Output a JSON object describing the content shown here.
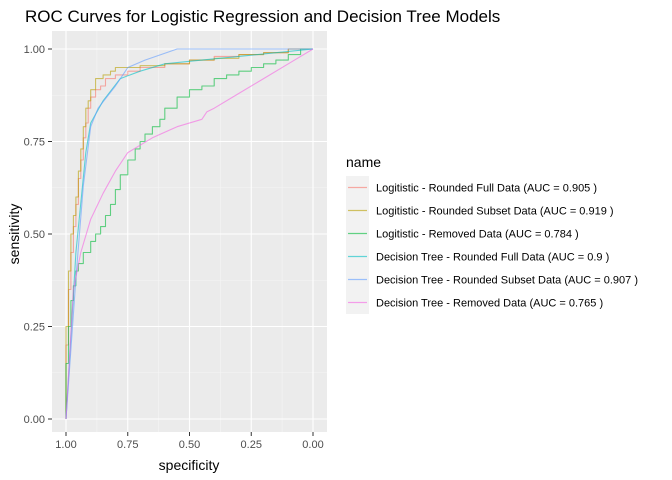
{
  "chart_data": {
    "type": "line",
    "title": "ROC Curves for Logistic Regression and Decision Tree Models",
    "xlabel": "specificity",
    "ylabel": "sensitivity",
    "xlim": [
      1.0,
      0.0
    ],
    "ylim": [
      0.0,
      1.0
    ],
    "x_reversed": true,
    "x_ticks": [
      1.0,
      0.75,
      0.5,
      0.25,
      0.0
    ],
    "x_tick_labels": [
      "1.00",
      "0.75",
      "0.50",
      "0.25",
      "0.00"
    ],
    "y_ticks": [
      0.0,
      0.25,
      0.5,
      0.75,
      1.0
    ],
    "y_tick_labels": [
      "0.00",
      "0.25",
      "0.50",
      "0.75",
      "1.00"
    ],
    "grid": true,
    "legend_title": "name",
    "legend_position": "right",
    "series": [
      {
        "name": "Logitistic - Rounded Full Data (AUC = 0.905 )",
        "color": "#F8766D",
        "step": true,
        "x": [
          1.0,
          0.99,
          0.98,
          0.97,
          0.96,
          0.95,
          0.94,
          0.93,
          0.92,
          0.91,
          0.9,
          0.88,
          0.86,
          0.84,
          0.8,
          0.75,
          0.7,
          0.6,
          0.5,
          0.4,
          0.3,
          0.2,
          0.1,
          0.0
        ],
        "y": [
          0.0,
          0.2,
          0.35,
          0.45,
          0.52,
          0.58,
          0.65,
          0.7,
          0.76,
          0.8,
          0.84,
          0.87,
          0.89,
          0.9,
          0.92,
          0.93,
          0.94,
          0.95,
          0.96,
          0.97,
          0.98,
          0.985,
          0.99,
          1.0
        ]
      },
      {
        "name": "Logitistic - Rounded Subset Data (AUC = 0.919 )",
        "color": "#B79F00",
        "step": true,
        "x": [
          1.0,
          0.99,
          0.98,
          0.97,
          0.96,
          0.95,
          0.94,
          0.93,
          0.92,
          0.91,
          0.9,
          0.88,
          0.85,
          0.82,
          0.8,
          0.75,
          0.7,
          0.6,
          0.5,
          0.4,
          0.3,
          0.2,
          0.1,
          0.0
        ],
        "y": [
          0.0,
          0.25,
          0.4,
          0.5,
          0.55,
          0.6,
          0.67,
          0.73,
          0.79,
          0.84,
          0.86,
          0.89,
          0.92,
          0.93,
          0.94,
          0.95,
          0.95,
          0.955,
          0.96,
          0.97,
          0.975,
          0.985,
          0.99,
          1.0
        ]
      },
      {
        "name": "Logitistic - Removed Data (AUC = 0.784 )",
        "color": "#00BA38",
        "step": true,
        "x": [
          1.0,
          0.99,
          0.98,
          0.97,
          0.96,
          0.95,
          0.93,
          0.9,
          0.88,
          0.86,
          0.84,
          0.82,
          0.8,
          0.78,
          0.75,
          0.72,
          0.7,
          0.68,
          0.65,
          0.62,
          0.6,
          0.55,
          0.5,
          0.45,
          0.4,
          0.35,
          0.3,
          0.25,
          0.2,
          0.15,
          0.1,
          0.05,
          0.0
        ],
        "y": [
          0.0,
          0.15,
          0.25,
          0.32,
          0.36,
          0.4,
          0.42,
          0.45,
          0.48,
          0.5,
          0.52,
          0.55,
          0.58,
          0.62,
          0.66,
          0.7,
          0.73,
          0.75,
          0.77,
          0.79,
          0.81,
          0.84,
          0.87,
          0.89,
          0.9,
          0.92,
          0.93,
          0.94,
          0.95,
          0.96,
          0.97,
          0.985,
          1.0
        ]
      },
      {
        "name": "Decision Tree - Rounded Full Data (AUC = 0.9 )",
        "color": "#00BFC4",
        "step": false,
        "x": [
          1.0,
          0.96,
          0.92,
          0.9,
          0.85,
          0.78,
          0.7,
          0.6,
          0.45,
          0.3,
          0.15,
          0.0
        ],
        "y": [
          0.0,
          0.45,
          0.72,
          0.8,
          0.86,
          0.92,
          0.94,
          0.96,
          0.97,
          0.98,
          0.99,
          1.0
        ]
      },
      {
        "name": "Decision Tree - Rounded Subset Data (AUC = 0.907 )",
        "color": "#619CFF",
        "step": false,
        "x": [
          1.0,
          0.96,
          0.93,
          0.9,
          0.87,
          0.8,
          0.75,
          0.68,
          0.55,
          0.4,
          0.2,
          0.0
        ],
        "y": [
          0.0,
          0.38,
          0.63,
          0.79,
          0.84,
          0.9,
          0.95,
          0.97,
          1.0,
          1.0,
          1.0,
          1.0
        ]
      },
      {
        "name": "Decision Tree - Removed Data (AUC = 0.765 )",
        "color": "#F564E3",
        "step": false,
        "x": [
          1.0,
          0.97,
          0.94,
          0.9,
          0.85,
          0.8,
          0.75,
          0.65,
          0.55,
          0.45,
          0.43,
          0.4,
          0.3,
          0.2,
          0.1,
          0.0
        ],
        "y": [
          0.0,
          0.35,
          0.45,
          0.54,
          0.61,
          0.67,
          0.72,
          0.76,
          0.79,
          0.81,
          0.83,
          0.84,
          0.88,
          0.92,
          0.96,
          1.0
        ]
      }
    ]
  }
}
